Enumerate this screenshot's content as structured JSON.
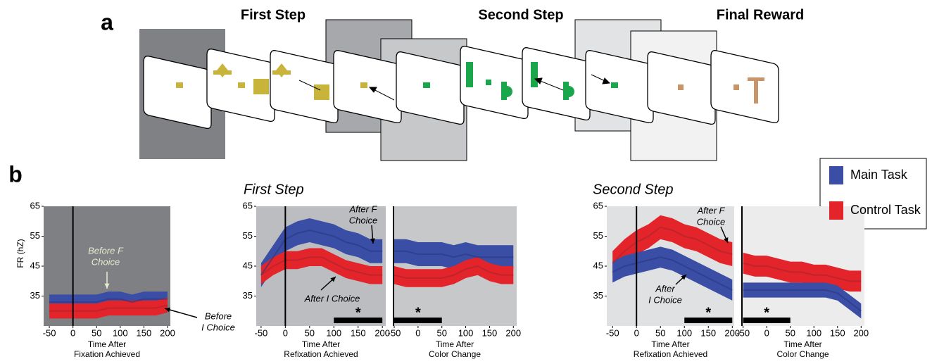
{
  "panel_a": {
    "label": "a",
    "steps": [
      "First Step",
      "Second Step",
      "Final Reward"
    ]
  },
  "panel_b": {
    "label": "b",
    "titles": [
      "First Step",
      "Second Step"
    ],
    "legend": [
      {
        "name": "Main Task",
        "color": "#3a4ea6"
      },
      {
        "name": "Control Task",
        "color": "#e3242b"
      }
    ]
  },
  "chart_data": [
    {
      "type": "line",
      "background": "#7f8083",
      "xlim": [
        -62,
        206
      ],
      "ylim": [
        25,
        65
      ],
      "xticks": [
        -50,
        0,
        50,
        100,
        150,
        200
      ],
      "yticks": [
        35,
        45,
        55,
        65
      ],
      "ylabel": "FR (hZ)",
      "xlabel": [
        "Time After",
        "Fixation Achieved"
      ],
      "vline": 0,
      "x": [
        -50,
        -25,
        0,
        25,
        50,
        75,
        100,
        125,
        150,
        175,
        200
      ],
      "series": [
        {
          "color": "#3a4ea6",
          "line": "#2c3680",
          "values": [
            33,
            33,
            33,
            33,
            33,
            34,
            34,
            33,
            34,
            34,
            34
          ],
          "error": [
            2.5,
            2.5,
            2.5,
            2.5,
            2.5,
            2.5,
            2.5,
            2.5,
            2.5,
            2.5,
            2.5
          ]
        },
        {
          "color": "#e3242b",
          "line": "#a8252a",
          "values": [
            30,
            30,
            30,
            30,
            30,
            31,
            31,
            31,
            31,
            31,
            32
          ],
          "error": [
            2.5,
            2.5,
            2.5,
            2.5,
            2.5,
            2.5,
            2.5,
            2.5,
            2.5,
            2.5,
            2.5
          ]
        }
      ],
      "annotations": [
        {
          "lines": [
            "Before F",
            "Choice"
          ],
          "color": "#e6ead0"
        },
        {
          "lines": [
            "Before",
            "I Choice"
          ],
          "color": "#000000"
        }
      ]
    },
    {
      "type": "line",
      "background": "#bcbdc0",
      "xlim": [
        -60,
        207
      ],
      "ylim": [
        25,
        65
      ],
      "xticks": [
        -50,
        0,
        50,
        100,
        150,
        200
      ],
      "yticks": [
        35,
        45,
        55,
        65
      ],
      "xlabel": [
        "Time After",
        "Refixation Achieved"
      ],
      "vline": 0,
      "x": [
        -50,
        -25,
        0,
        25,
        50,
        75,
        100,
        125,
        150,
        175,
        200
      ],
      "series": [
        {
          "color": "#3a4ea6",
          "line": "#2c3680",
          "values": [
            42,
            48,
            54,
            56,
            57,
            56,
            55,
            53,
            52,
            50,
            50
          ],
          "error": [
            4,
            4,
            4,
            4,
            4,
            4,
            4,
            4,
            4,
            4,
            4
          ]
        },
        {
          "color": "#e3242b",
          "line": "#a8252a",
          "values": [
            42,
            45,
            47,
            47,
            48,
            48,
            46,
            44,
            43,
            42,
            42
          ],
          "error": [
            3,
            3,
            3,
            3,
            3,
            3,
            3,
            3,
            3,
            3,
            3
          ]
        }
      ],
      "sig": {
        "range": [
          100,
          200
        ],
        "label": "*"
      },
      "annotations": [
        {
          "lines": [
            "After F",
            "Choice"
          ],
          "color": "#000000"
        },
        {
          "lines": [
            "After I Choice"
          ],
          "color": "#000000"
        }
      ]
    },
    {
      "type": "line",
      "background": "#c6c8ca",
      "xlim": [
        -53,
        207
      ],
      "ylim": [
        25,
        65
      ],
      "xticks": [
        -50,
        0,
        50,
        100,
        150,
        200
      ],
      "xlabel": [
        "Time After",
        "Color Change"
      ],
      "x": [
        -50,
        -25,
        0,
        25,
        50,
        75,
        100,
        125,
        150,
        175,
        200
      ],
      "series": [
        {
          "color": "#3a4ea6",
          "line": "#2c3680",
          "values": [
            50,
            50,
            49,
            49,
            49,
            48,
            49,
            48,
            48,
            48,
            48
          ],
          "error": [
            4,
            4,
            4,
            4,
            4,
            4,
            4,
            4,
            4,
            4,
            4
          ]
        },
        {
          "color": "#e3242b",
          "line": "#a8252a",
          "values": [
            42,
            41,
            41,
            41,
            41,
            42,
            44,
            45,
            43,
            42,
            42
          ],
          "error": [
            3,
            3,
            3,
            3,
            3,
            3,
            3,
            3,
            3,
            3,
            3
          ]
        }
      ],
      "sig": {
        "range": [
          -50,
          50
        ],
        "label": "*"
      },
      "annotations": []
    },
    {
      "type": "line",
      "background": "#e0e1e3",
      "xlim": [
        -62,
        204
      ],
      "ylim": [
        25,
        65
      ],
      "xticks": [
        -50,
        0,
        50,
        100,
        150,
        200
      ],
      "yticks": [
        35,
        45,
        55,
        65
      ],
      "xlabel": [
        "Time After",
        "Refixation Achieved"
      ],
      "vline": 0,
      "x": [
        -50,
        -25,
        0,
        25,
        50,
        75,
        100,
        125,
        150,
        175,
        200
      ],
      "series": [
        {
          "color": "#e3242b",
          "line": "#a8252a",
          "values": [
            46,
            50,
            53,
            55,
            58,
            57,
            55,
            54,
            52,
            50,
            49
          ],
          "error": [
            4,
            4,
            4,
            4,
            4,
            4,
            4,
            4,
            4,
            4,
            4
          ]
        },
        {
          "color": "#3a4ea6",
          "line": "#2c3680",
          "values": [
            43,
            45,
            46,
            47,
            48,
            47,
            45,
            43,
            41,
            39,
            37
          ],
          "error": [
            3.5,
            3.5,
            3.5,
            3.5,
            3.5,
            3.5,
            3.5,
            3.5,
            3.5,
            3.5,
            3.5
          ]
        }
      ],
      "sig": {
        "range": [
          100,
          200
        ],
        "label": "*"
      },
      "annotations": [
        {
          "lines": [
            "After F",
            "Choice"
          ],
          "color": "#000000"
        },
        {
          "lines": [
            "After",
            "I Choice"
          ],
          "color": "#000000"
        }
      ]
    },
    {
      "type": "line",
      "background": "#ececed",
      "xlim": [
        -54,
        207
      ],
      "ylim": [
        25,
        65
      ],
      "xticks": [
        -50,
        0,
        50,
        100,
        150,
        200
      ],
      "xlabel": [
        "Time After",
        "Color Change"
      ],
      "x": [
        -50,
        -25,
        0,
        25,
        50,
        75,
        100,
        125,
        150,
        175,
        200
      ],
      "series": [
        {
          "color": "#e3242b",
          "line": "#a8252a",
          "values": [
            46,
            45,
            45,
            44,
            43,
            43,
            42,
            42,
            41,
            40,
            40
          ],
          "error": [
            3.5,
            3.5,
            3.5,
            3.5,
            3.5,
            3.5,
            3.5,
            3.5,
            3.5,
            3.5,
            3.5
          ]
        },
        {
          "color": "#3a4ea6",
          "line": "#2c3680",
          "values": [
            37,
            37,
            37,
            37,
            37,
            37,
            37,
            37,
            36,
            33,
            30
          ],
          "error": [
            2.5,
            2.5,
            2.5,
            2.5,
            2.5,
            2.5,
            2.5,
            2.5,
            2.5,
            2.5,
            2.5
          ]
        }
      ],
      "sig": {
        "range": [
          -50,
          50
        ],
        "label": "*"
      },
      "annotations": []
    }
  ]
}
